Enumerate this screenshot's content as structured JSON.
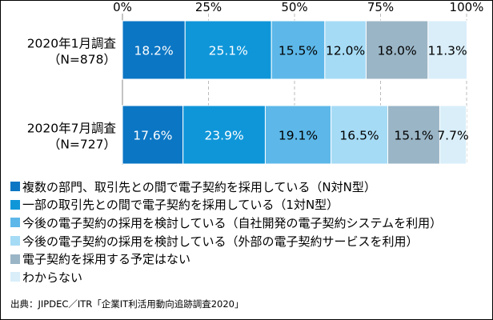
{
  "chart_data": {
    "type": "bar",
    "orientation": "horizontal",
    "stacked": true,
    "xlim": [
      0,
      100
    ],
    "x_ticks": [
      "0%",
      "25%",
      "50%",
      "75%",
      "100%"
    ],
    "grid": true,
    "categories": [
      {
        "line1": "2020年1月調査",
        "line2": "（N=878）"
      },
      {
        "line1": "2020年7月調査",
        "line2": "（N=727）"
      }
    ],
    "series": [
      {
        "name": "複数の部門、取引先との間で電子契約を採用している（N対N型）",
        "color": "#0b76c4",
        "values": [
          18.2,
          17.6
        ],
        "labels": [
          "18.2%",
          "17.6%"
        ]
      },
      {
        "name": "一部の取引先との間で電子契約を採用している（1対N型）",
        "color": "#0f96d9",
        "values": [
          25.1,
          23.9
        ],
        "labels": [
          "25.1%",
          "23.9%"
        ]
      },
      {
        "name": "今後の電子契約の採用を検討している（自社開発の電子契約システムを利用）",
        "color": "#5db8e9",
        "values": [
          15.5,
          19.1
        ],
        "labels": [
          "15.5%",
          "19.1%"
        ]
      },
      {
        "name": "今後の電子契約の採用を検討している（外部の電子契約サービスを利用）",
        "color": "#a6dbf5",
        "values": [
          12.0,
          16.5
        ],
        "labels": [
          "12.0%",
          "16.5%"
        ]
      },
      {
        "name": "電子契約を採用する予定はない",
        "color": "#9ab5c6",
        "values": [
          18.0,
          15.1
        ],
        "labels": [
          "18.0%",
          "15.1%"
        ]
      },
      {
        "name": "わからない",
        "color": "#d9eef9",
        "values": [
          11.3,
          7.7
        ],
        "labels": [
          "11.3%",
          "7.7%"
        ]
      }
    ],
    "label_color": "#ffffff",
    "label_color_light": "#000000"
  },
  "source": "出典：JIPDEC／ITR「企業IT利活用動向追跡調査2020」"
}
